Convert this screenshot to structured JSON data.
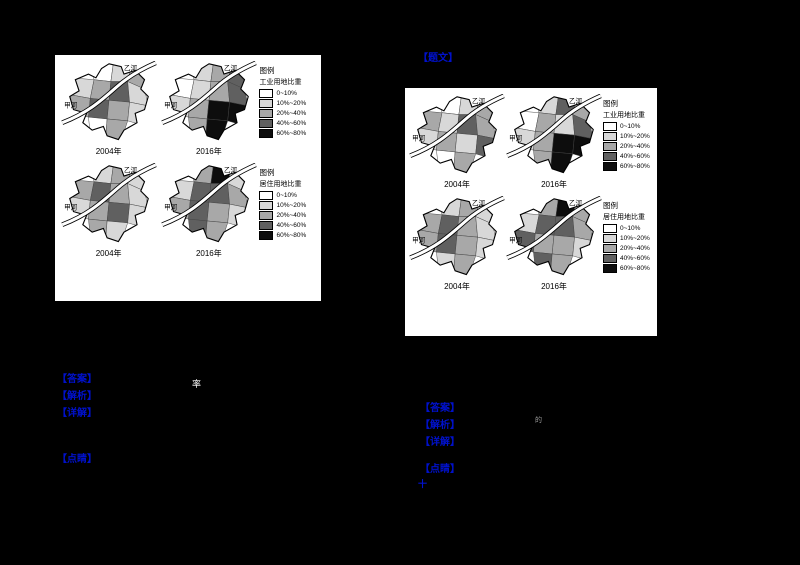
{
  "page": {
    "background": "#000000"
  },
  "rivers": {
    "left": "甲河",
    "right": "乙河"
  },
  "legend": {
    "title": "图例",
    "industrial": "工业用地比重",
    "residential": "居住用地比重",
    "classes": [
      {
        "label": "0~10%",
        "color": "#ffffff"
      },
      {
        "label": "10%~20%",
        "color": "#d8d8d8"
      },
      {
        "label": "20%~40%",
        "color": "#a8a8a8"
      },
      {
        "label": "40%~60%",
        "color": "#606060"
      },
      {
        "label": "60%~80%",
        "color": "#0d0d0d"
      }
    ]
  },
  "figures": [
    {
      "name": "figure-left",
      "groups": [
        {
          "legend_subtitle_key": "industrial",
          "maps": [
            {
              "year": "2004年",
              "fills": [
                "#ffffff",
                "#d8d8d8",
                "#a8a8a8",
                "#d8d8d8",
                "#a8a8a8",
                "#606060",
                "#d8d8d8",
                "#a8a8a8",
                "#606060",
                "#a8a8a8",
                "#d8d8d8",
                "#ffffff",
                "#a8a8a8"
              ]
            },
            {
              "year": "2016年",
              "fills": [
                "#d8d8d8",
                "#a8a8a8",
                "#606060",
                "#ffffff",
                "#d8d8d8",
                "#a8a8a8",
                "#606060",
                "#d8d8d8",
                "#a8a8a8",
                "#0d0d0d",
                "#0d0d0d",
                "#a8a8a8",
                "#0d0d0d"
              ]
            }
          ]
        },
        {
          "legend_subtitle_key": "residential",
          "maps": [
            {
              "year": "2004年",
              "fills": [
                "#d8d8d8",
                "#a8a8a8",
                "#d8d8d8",
                "#a8a8a8",
                "#606060",
                "#a8a8a8",
                "#d8d8d8",
                "#d8d8d8",
                "#a8a8a8",
                "#606060",
                "#d8d8d8",
                "#a8a8a8",
                "#d8d8d8"
              ]
            },
            {
              "year": "2016年",
              "fills": [
                "#a8a8a8",
                "#0d0d0d",
                "#d8d8d8",
                "#d8d8d8",
                "#606060",
                "#606060",
                "#a8a8a8",
                "#a8a8a8",
                "#606060",
                "#a8a8a8",
                "#d8d8d8",
                "#606060",
                "#a8a8a8"
              ]
            }
          ]
        }
      ]
    },
    {
      "name": "figure-right",
      "groups": [
        {
          "legend_subtitle_key": "industrial",
          "maps": [
            {
              "year": "2004年",
              "fills": [
                "#ffffff",
                "#d8d8d8",
                "#a8a8a8",
                "#a8a8a8",
                "#d8d8d8",
                "#606060",
                "#a8a8a8",
                "#d8d8d8",
                "#a8a8a8",
                "#d8d8d8",
                "#606060",
                "#ffffff",
                "#a8a8a8"
              ]
            },
            {
              "year": "2016年",
              "fills": [
                "#d8d8d8",
                "#606060",
                "#a8a8a8",
                "#ffffff",
                "#a8a8a8",
                "#d8d8d8",
                "#606060",
                "#d8d8d8",
                "#a8a8a8",
                "#0d0d0d",
                "#0d0d0d",
                "#a8a8a8",
                "#0d0d0d"
              ]
            }
          ]
        },
        {
          "legend_subtitle_key": "residential",
          "maps": [
            {
              "year": "2004年",
              "fills": [
                "#d8d8d8",
                "#a8a8a8",
                "#d8d8d8",
                "#a8a8a8",
                "#606060",
                "#a8a8a8",
                "#d8d8d8",
                "#a8a8a8",
                "#606060",
                "#a8a8a8",
                "#d8d8d8",
                "#d8d8d8",
                "#a8a8a8"
              ]
            },
            {
              "year": "2016年",
              "fills": [
                "#a8a8a8",
                "#0d0d0d",
                "#a8a8a8",
                "#d8d8d8",
                "#606060",
                "#606060",
                "#a8a8a8",
                "#606060",
                "#a8a8a8",
                "#a8a8a8",
                "#d8d8d8",
                "#606060",
                "#a8a8a8"
              ]
            }
          ]
        }
      ]
    }
  ],
  "annotations": {
    "a1": "【答案】",
    "a2": "【解析】",
    "a3": "【详解】",
    "a4": "【点睛】",
    "a5": "【题文】",
    "a6": "【答案】",
    "a7": "【解析】",
    "a8": "【详解】",
    "a9": "【点睛】",
    "a10": "十"
  },
  "strays": {
    "white_char": "率",
    "gray_char": "的"
  }
}
